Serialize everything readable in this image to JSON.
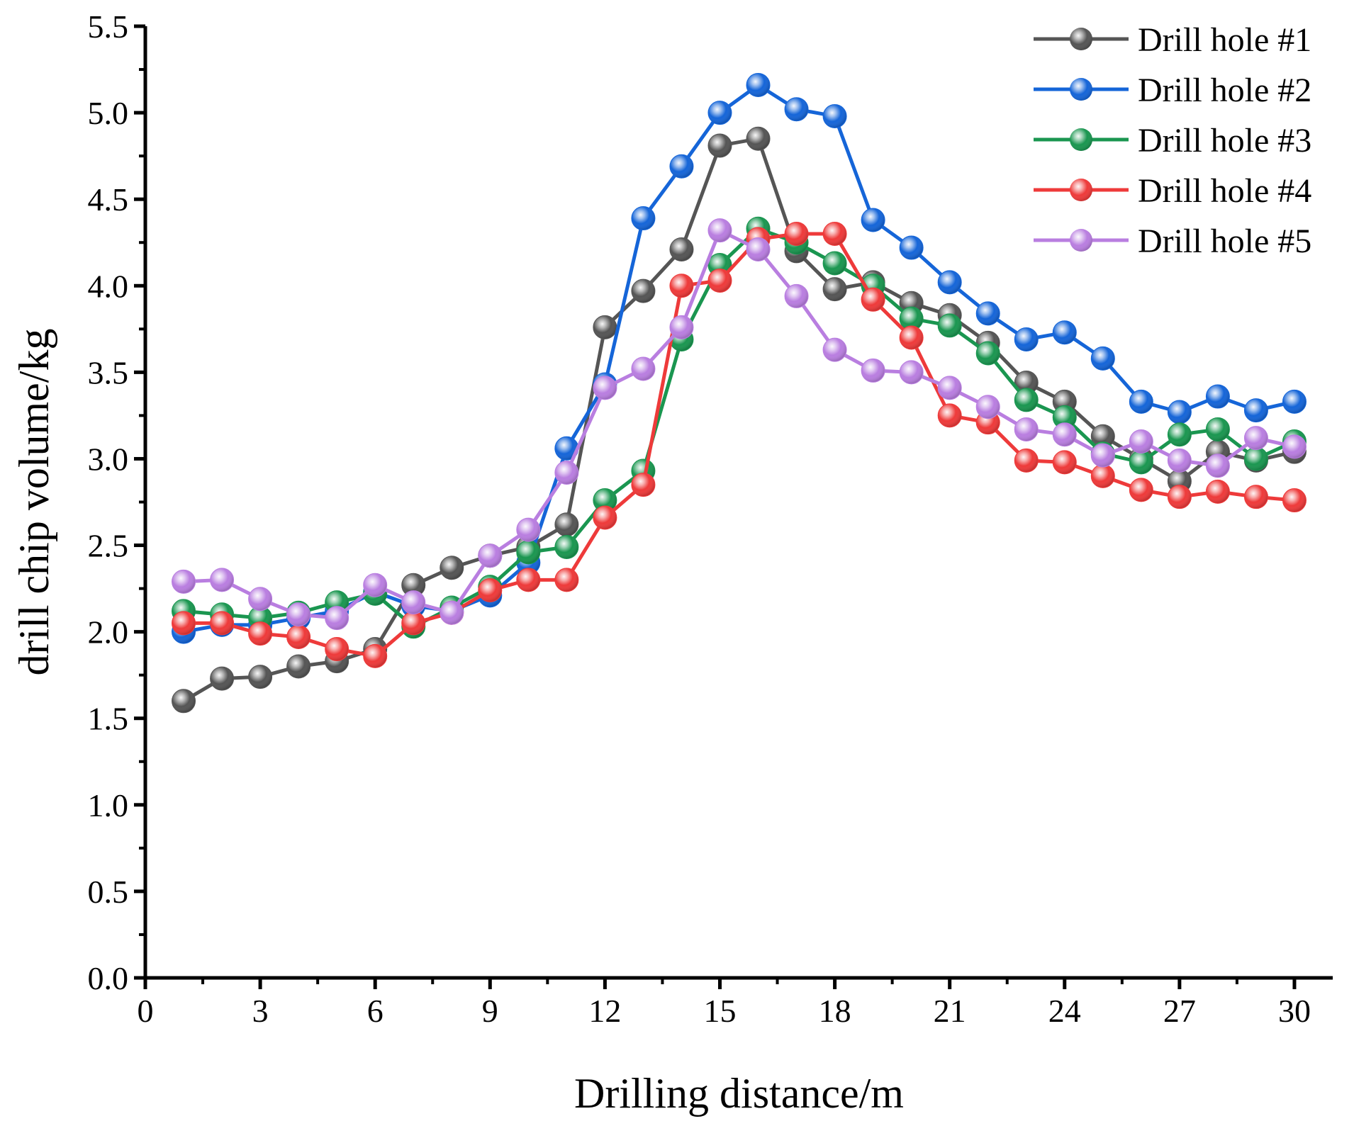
{
  "chart_data": {
    "type": "line",
    "title": "",
    "xlabel": "Drilling distance/m",
    "ylabel": "drill chip volume/kg",
    "xlim": [
      0,
      31
    ],
    "ylim": [
      0,
      5.5
    ],
    "xticks": [
      "0",
      "3",
      "6",
      "9",
      "12",
      "15",
      "18",
      "21",
      "24",
      "27",
      "30"
    ],
    "yticks": [
      "0.0",
      "0.5",
      "1.0",
      "1.5",
      "2.0",
      "2.5",
      "3.0",
      "3.5",
      "4.0",
      "4.5",
      "5.0",
      "5.5"
    ],
    "grid": false,
    "legend_position": "top-right",
    "x": [
      1,
      2,
      3,
      4,
      5,
      6,
      7,
      8,
      9,
      10,
      11,
      12,
      13,
      14,
      15,
      16,
      17,
      18,
      19,
      20,
      21,
      22,
      23,
      24,
      25,
      26,
      27,
      28,
      29,
      30
    ],
    "series": [
      {
        "name": "Drill hole #1",
        "color": "#555555",
        "values": [
          1.6,
          1.73,
          1.74,
          1.8,
          1.83,
          1.9,
          2.27,
          2.37,
          2.44,
          2.49,
          2.62,
          3.76,
          3.97,
          4.21,
          4.81,
          4.85,
          4.2,
          3.98,
          4.02,
          3.9,
          3.83,
          3.67,
          3.44,
          3.33,
          3.13,
          3.0,
          2.87,
          3.04,
          2.99,
          3.04
        ]
      },
      {
        "name": "Drill hole #2",
        "color": "#1565d8",
        "values": [
          2.0,
          2.04,
          2.04,
          2.08,
          2.12,
          2.23,
          2.15,
          2.12,
          2.21,
          2.4,
          3.06,
          3.43,
          4.39,
          4.69,
          5.0,
          5.16,
          5.02,
          4.98,
          4.38,
          4.22,
          4.02,
          3.84,
          3.69,
          3.73,
          3.58,
          3.33,
          3.27,
          3.36,
          3.28,
          3.33
        ]
      },
      {
        "name": "Drill hole #3",
        "color": "#1a9650",
        "values": [
          2.12,
          2.1,
          2.08,
          2.11,
          2.17,
          2.22,
          2.03,
          2.14,
          2.26,
          2.46,
          2.49,
          2.76,
          2.93,
          3.69,
          4.12,
          4.33,
          4.25,
          4.13,
          4.0,
          3.81,
          3.77,
          3.61,
          3.34,
          3.24,
          3.03,
          2.98,
          3.14,
          3.17,
          3.0,
          3.1
        ]
      },
      {
        "name": "Drill hole #4",
        "color": "#ee3a3a",
        "values": [
          2.05,
          2.05,
          1.99,
          1.97,
          1.9,
          1.86,
          2.05,
          2.11,
          2.24,
          2.3,
          2.3,
          2.66,
          2.85,
          4.0,
          4.03,
          4.27,
          4.3,
          4.3,
          3.92,
          3.7,
          3.25,
          3.21,
          2.99,
          2.98,
          2.9,
          2.82,
          2.78,
          2.81,
          2.78,
          2.76
        ]
      },
      {
        "name": "Drill hole #5",
        "color": "#b97ee0",
        "values": [
          2.29,
          2.3,
          2.19,
          2.1,
          2.08,
          2.27,
          2.17,
          2.11,
          2.44,
          2.59,
          2.92,
          3.41,
          3.52,
          3.76,
          4.32,
          4.21,
          3.94,
          3.63,
          3.51,
          3.5,
          3.41,
          3.3,
          3.17,
          3.14,
          3.02,
          3.1,
          2.99,
          2.96,
          3.12,
          3.07
        ]
      }
    ]
  }
}
